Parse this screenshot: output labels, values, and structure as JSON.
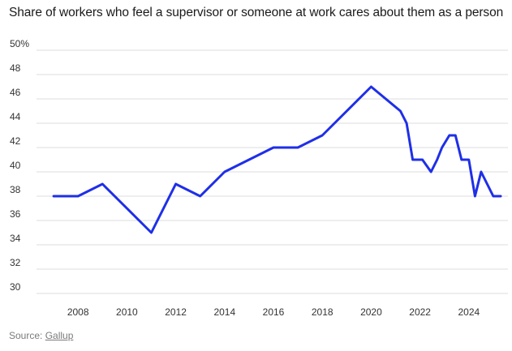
{
  "chart_data": {
    "type": "line",
    "title": "Share of workers who feel a supervisor or someone at work cares about them as a person",
    "xlabel": "",
    "ylabel": "",
    "xlim": [
      2006.3,
      2025.6
    ],
    "ylim": [
      30,
      50
    ],
    "x_ticks": [
      2008,
      2010,
      2012,
      2014,
      2016,
      2018,
      2020,
      2022,
      2024
    ],
    "y_ticks": [
      30,
      32,
      34,
      36,
      38,
      40,
      42,
      44,
      46,
      48,
      50
    ],
    "y_tick_labels": [
      "30",
      "32",
      "34",
      "36",
      "38",
      "40",
      "42",
      "44",
      "46",
      "48",
      "50%"
    ],
    "grid": "horizontal",
    "series": [
      {
        "color": "#1f2fe8",
        "points": [
          {
            "x": 2007.0,
            "y": 38
          },
          {
            "x": 2008.0,
            "y": 38
          },
          {
            "x": 2009.0,
            "y": 39
          },
          {
            "x": 2011.0,
            "y": 35
          },
          {
            "x": 2012.0,
            "y": 39
          },
          {
            "x": 2013.0,
            "y": 38
          },
          {
            "x": 2014.0,
            "y": 40
          },
          {
            "x": 2016.0,
            "y": 42
          },
          {
            "x": 2017.0,
            "y": 42
          },
          {
            "x": 2018.0,
            "y": 43
          },
          {
            "x": 2020.0,
            "y": 47
          },
          {
            "x": 2021.2,
            "y": 45
          },
          {
            "x": 2021.45,
            "y": 44
          },
          {
            "x": 2021.7,
            "y": 41
          },
          {
            "x": 2022.1,
            "y": 41
          },
          {
            "x": 2022.45,
            "y": 40
          },
          {
            "x": 2022.7,
            "y": 41
          },
          {
            "x": 2022.9,
            "y": 42
          },
          {
            "x": 2023.2,
            "y": 43
          },
          {
            "x": 2023.45,
            "y": 43
          },
          {
            "x": 2023.7,
            "y": 41
          },
          {
            "x": 2024.0,
            "y": 41
          },
          {
            "x": 2024.25,
            "y": 38
          },
          {
            "x": 2024.5,
            "y": 40
          },
          {
            "x": 2025.0,
            "y": 38
          },
          {
            "x": 2025.3,
            "y": 38
          }
        ]
      }
    ]
  },
  "source": {
    "prefix": "Source:",
    "link_text": "Gallup"
  },
  "colors": {
    "line": "#1f2fe8",
    "grid": "#dcdcdc",
    "axis_text": "#333333",
    "source_text": "#7a7a7a"
  }
}
